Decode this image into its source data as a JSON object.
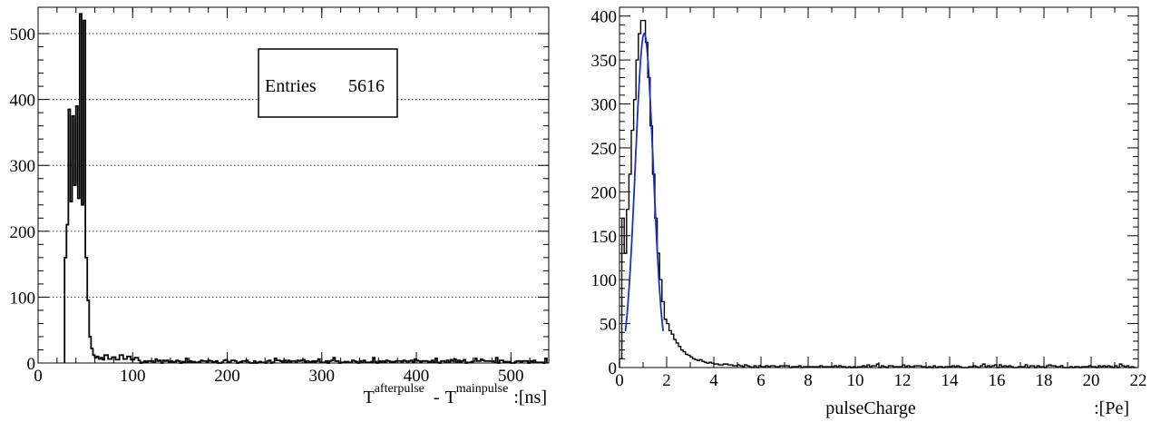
{
  "chart_data": [
    {
      "type": "histogram",
      "xlabel": {
        "prefix": "T",
        "sup1": "afterpulse",
        "minus": "-",
        "main2": "T",
        "sup2": "mainpulse",
        "unit": ":[ns]"
      },
      "xlim": [
        0,
        540
      ],
      "ylim": [
        0,
        540
      ],
      "x_ticks": [
        0,
        100,
        200,
        300,
        400,
        500
      ],
      "y_ticks": [
        0,
        100,
        200,
        300,
        400,
        500
      ],
      "grid": "horizontal dotted",
      "stats": {
        "label": "Entries",
        "value": "5616"
      },
      "bin_width": 2,
      "x": [
        28,
        30,
        32,
        34,
        36,
        38,
        40,
        42,
        44,
        46,
        48,
        50,
        52,
        54,
        56,
        58,
        60,
        62,
        64,
        66,
        68,
        70,
        74,
        78,
        82,
        86,
        90,
        94,
        98,
        102,
        106
      ],
      "values": [
        160,
        210,
        385,
        245,
        375,
        270,
        390,
        250,
        530,
        240,
        520,
        160,
        95,
        40,
        22,
        12,
        8,
        10,
        6,
        8,
        5,
        12,
        6,
        9,
        5,
        12,
        6,
        10,
        5,
        8,
        4
      ],
      "noise_level": 4
    },
    {
      "type": "histogram",
      "xlabel": {
        "name": "pulseCharge",
        "unit": ":[Pe]"
      },
      "xlim": [
        0,
        22
      ],
      "ylim": [
        0,
        410
      ],
      "x_ticks": [
        0,
        2,
        4,
        6,
        8,
        10,
        12,
        14,
        16,
        18,
        20,
        22
      ],
      "y_ticks": [
        0,
        50,
        100,
        150,
        200,
        250,
        300,
        350,
        400
      ],
      "grid": "off",
      "bin_width": 0.1,
      "x": [
        0.0,
        0.1,
        0.2,
        0.3,
        0.4,
        0.5,
        0.6,
        0.7,
        0.8,
        0.9,
        1.0,
        1.1,
        1.2,
        1.3,
        1.4,
        1.5,
        1.6,
        1.7,
        1.8,
        1.9,
        2.0,
        2.1,
        2.2,
        2.3,
        2.4,
        2.5,
        2.6,
        2.7,
        2.8,
        2.9,
        3.0,
        3.1,
        3.2,
        3.3,
        3.4,
        3.5,
        3.6,
        3.7,
        3.8,
        3.9,
        4.0,
        4.2,
        4.4,
        4.6,
        4.8,
        5.0
      ],
      "values": [
        10,
        170,
        130,
        180,
        220,
        270,
        305,
        350,
        380,
        395,
        395,
        370,
        330,
        275,
        220,
        170,
        130,
        100,
        75,
        55,
        50,
        42,
        38,
        32,
        28,
        24,
        20,
        18,
        15,
        14,
        12,
        10,
        9,
        8,
        9,
        7,
        6,
        5,
        6,
        5,
        4,
        3,
        4,
        3,
        2,
        3
      ],
      "noise_level": 2,
      "fit": {
        "color": "#1f2fbf",
        "x_range": [
          0.25,
          1.85
        ],
        "mean": 1.05,
        "sigma": 0.38,
        "amplitude": 380
      }
    }
  ]
}
